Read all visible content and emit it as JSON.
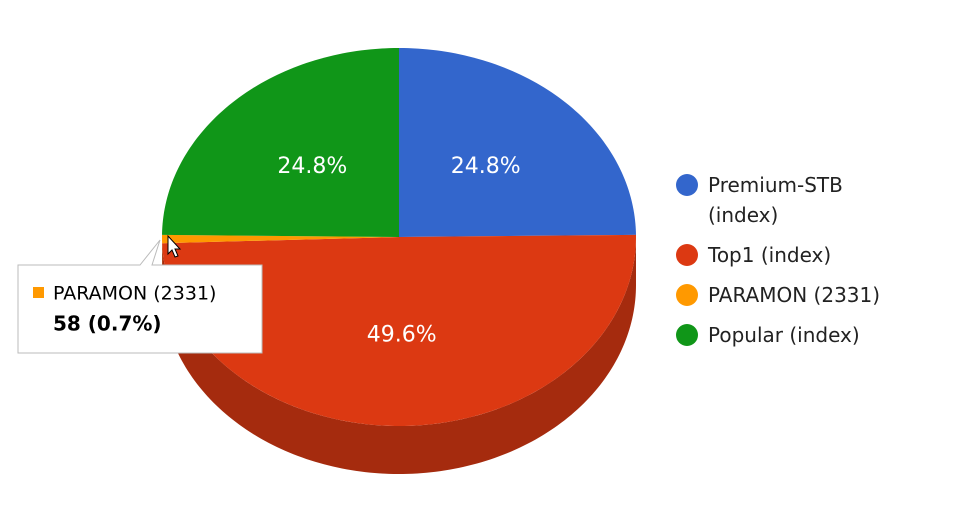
{
  "chart_data": {
    "type": "pie3d",
    "categories": [
      "Premium-STB (index)",
      "Top1 (index)",
      "PARAMON (2331)",
      "Popular (index)"
    ],
    "values": [
      24.8,
      49.6,
      0.7,
      24.8
    ],
    "value_labels": [
      "24.8%",
      "49.6%",
      null,
      "24.8%"
    ],
    "colors": [
      "#3366cc",
      "#dc3912",
      "#ff9900",
      "#109618"
    ],
    "side_colors": [
      "#26499a",
      "#a52b0e",
      "#bf7300",
      "#0c710f"
    ],
    "legend": "right",
    "tooltip": {
      "name": "PARAMON (2331)",
      "text": "58 (0.7%)",
      "color": "#ff9900",
      "category_index": 2
    }
  }
}
